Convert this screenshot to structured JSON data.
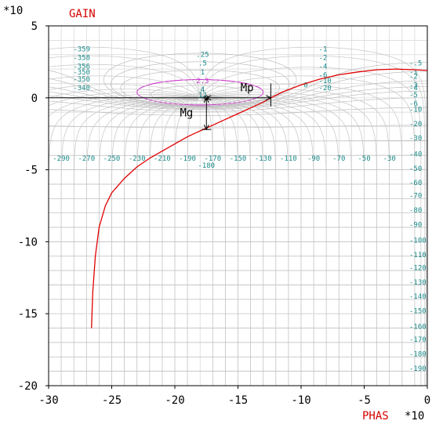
{
  "chart_data": {
    "type": "line",
    "title": "",
    "xlabel": "PHAS",
    "ylabel": "GAIN",
    "x_multiplier": "*10",
    "y_multiplier": "*10",
    "xlim": [
      -30,
      0
    ],
    "ylim": [
      -20,
      5
    ],
    "x_ticks": [
      "-30",
      "-25",
      "-20",
      "-15",
      "-10",
      "-5",
      "0"
    ],
    "y_ticks": [
      "5",
      "0",
      "-5",
      "-10",
      "-15",
      "-20"
    ],
    "grid": true,
    "series": [
      {
        "color": "#e00000",
        "points": [
          [
            -26.6,
            -16.0
          ],
          [
            -26.5,
            -13.5
          ],
          [
            -26.3,
            -11.0
          ],
          [
            -26.0,
            -9.0
          ],
          [
            -25.5,
            -7.5
          ],
          [
            -25.0,
            -6.6
          ],
          [
            -24.0,
            -5.6
          ],
          [
            -23.0,
            -4.8
          ],
          [
            -22.0,
            -4.2
          ],
          [
            -21.0,
            -3.7
          ],
          [
            -20.0,
            -3.2
          ],
          [
            -19.0,
            -2.7
          ],
          [
            -18.0,
            -2.3
          ],
          [
            -17.0,
            -1.9
          ],
          [
            -16.0,
            -1.5
          ],
          [
            -15.0,
            -1.1
          ],
          [
            -14.0,
            -0.7
          ],
          [
            -13.0,
            -0.3
          ],
          [
            -12.4,
            0.0
          ],
          [
            -11.5,
            0.4
          ],
          [
            -10.0,
            0.9
          ],
          [
            -8.5,
            1.3
          ],
          [
            -7.0,
            1.6
          ],
          [
            -5.5,
            1.8
          ],
          [
            -4.0,
            1.95
          ],
          [
            -2.5,
            2.0
          ],
          [
            -1.0,
            1.95
          ],
          [
            0.0,
            1.9
          ]
        ]
      }
    ],
    "nichols_contours": {
      "mag_db_labels": [
        "-.5",
        "-1",
        "-2",
        "-3",
        "-4",
        "-5",
        "-6",
        "-10",
        "-20",
        "-30",
        "-40",
        "-50",
        "-60",
        "-70",
        "-80",
        "-90",
        "-100",
        "-110",
        "-120",
        "-130",
        "-140",
        "-150",
        "-160",
        "-170",
        "-180",
        "-190"
      ],
      "mag_db_label_y": [
        2.4,
        1.8,
        1.5,
        0.9,
        0.7,
        0.2,
        -0.4,
        -0.8,
        -1.8,
        -2.8,
        -3.9,
        -4.9,
        -5.9,
        -6.8,
        -7.8,
        -8.8,
        -9.9,
        -10.9,
        -11.8,
        -12.8,
        -13.8,
        -14.8,
        -15.9,
        -16.8,
        -17.8,
        -18.8
      ],
      "phase_labels": [
        "-290",
        "-270",
        "-250",
        "-230",
        "-210",
        "-190",
        "-170",
        "-150",
        "-130",
        "-110",
        "-90",
        "-70",
        "-50",
        "-30"
      ],
      "phase_label_x": [
        -29.0,
        -27.0,
        -25.0,
        -23.0,
        -21.0,
        -19.0,
        -17.0,
        -15.0,
        -13.0,
        -11.0,
        -9.0,
        -7.0,
        -5.0,
        -3.0
      ],
      "left_labels": [
        "-359",
        "-358",
        "-356",
        "-350",
        "-350",
        "-340"
      ],
      "left_label_y": [
        3.4,
        2.8,
        2.2,
        1.8,
        1.3,
        0.7
      ],
      "top_left_labels": [
        ".25",
        ".5",
        "1",
        "2.3",
        "4",
        "12"
      ],
      "top_left_label_y": [
        3.0,
        2.4,
        1.8,
        1.2,
        0.6,
        0.2
      ],
      "top_right_labels": [
        "-1",
        "-2",
        "-4",
        "-6",
        "-10",
        "-20",
        "0"
      ],
      "top_right_label_x": [
        -8.6,
        -8.6,
        -8.6,
        -8.6,
        -8.6,
        -8.6,
        -9.8
      ],
      "top_right_label_y": [
        3.4,
        2.8,
        2.2,
        1.6,
        1.2,
        0.7,
        0.9
      ],
      "extra_label": "-180"
    },
    "annotations": [
      {
        "label": "Mp",
        "x": -14.8,
        "y": 0.45
      },
      {
        "label": "Mg",
        "x": -19.6,
        "y": -1.3
      }
    ],
    "resonance_contour_color": "#cc33cc"
  }
}
